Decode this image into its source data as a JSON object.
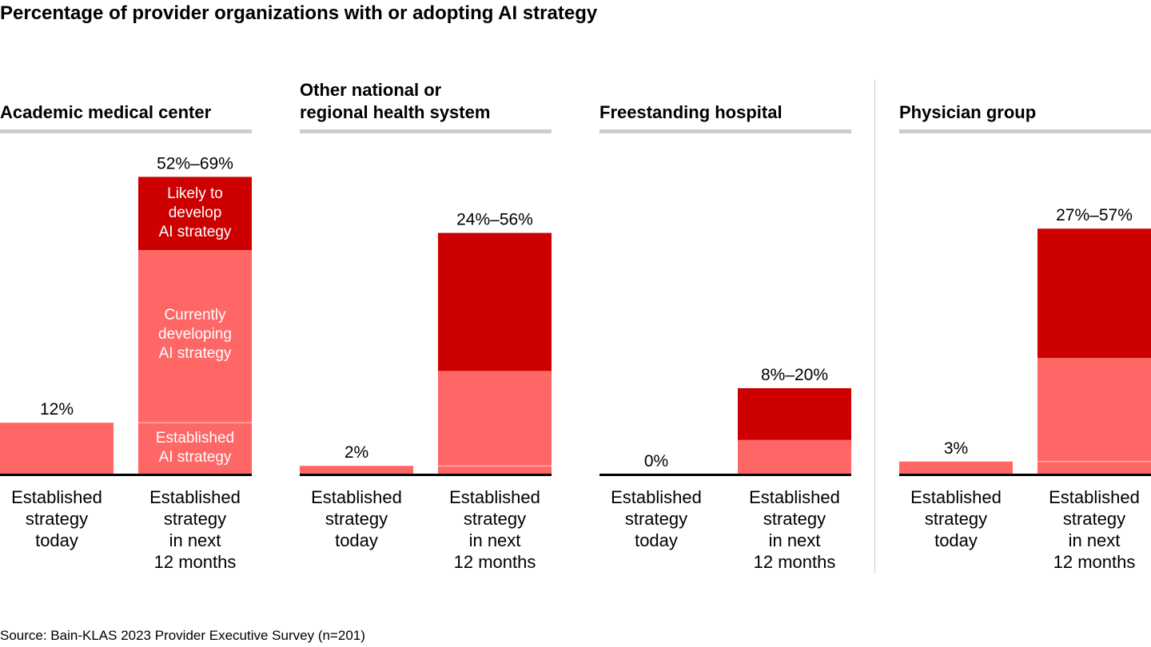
{
  "title": "Percentage of provider organizations with or adopting AI strategy",
  "source": "Source: Bain-KLAS 2023 Provider Executive Survey (n=201)",
  "colors": {
    "established": "#FF6666",
    "currently_developing": "#FF6666",
    "likely": "#CC0000",
    "header_rule": "#CCCCCC"
  },
  "chart_data": {
    "type": "bar",
    "stacked": true,
    "ylim": [
      0,
      70
    ],
    "categories": [
      [
        "Established",
        "strategy",
        "today"
      ],
      [
        "Established",
        "strategy",
        "in next",
        "12 months"
      ]
    ],
    "segment_labels": {
      "likely": [
        "Likely to",
        "develop",
        "AI strategy"
      ],
      "currently_developing": [
        "Currently",
        "developing",
        "AI strategy"
      ],
      "established": [
        "Established",
        "AI strategy"
      ]
    },
    "panels": [
      {
        "name": [
          "Academic medical center"
        ],
        "today": 12,
        "today_label": "12%",
        "established": 12,
        "low": 52,
        "high": 69,
        "range_label": "52%–69%"
      },
      {
        "name": [
          "Other national or",
          "regional health system"
        ],
        "today": 2,
        "today_label": "2%",
        "established": 2,
        "low": 24,
        "high": 56,
        "range_label": "24%–56%"
      },
      {
        "name": [
          "Freestanding hospital"
        ],
        "today": 0,
        "today_label": "0%",
        "established": 0,
        "low": 8,
        "high": 20,
        "range_label": "8%–20%"
      },
      {
        "name": [
          "Physician group"
        ],
        "today": 3,
        "today_label": "3%",
        "established": 3,
        "low": 27,
        "high": 57,
        "range_label": "27%–57%"
      }
    ]
  }
}
